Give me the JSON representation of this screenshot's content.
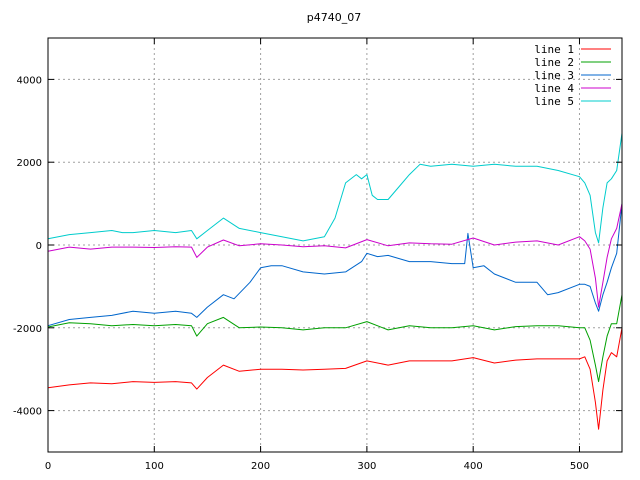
{
  "chart_data": {
    "type": "line",
    "title": "p4740_07",
    "xlabel": "",
    "ylabel": "",
    "xlim": [
      0,
      540
    ],
    "ylim": [
      -5000,
      5000
    ],
    "xticks": [
      0,
      100,
      200,
      300,
      400,
      500
    ],
    "yticks": [
      -4000,
      -2000,
      0,
      2000,
      4000
    ],
    "grid": true,
    "legend_position": "top-right",
    "series": [
      {
        "name": "line 1",
        "color": "#ff0000",
        "x": [
          0,
          20,
          40,
          60,
          80,
          100,
          120,
          135,
          140,
          150,
          165,
          180,
          200,
          220,
          240,
          260,
          280,
          300,
          320,
          340,
          360,
          380,
          400,
          420,
          440,
          460,
          480,
          500,
          505,
          510,
          515,
          518,
          522,
          526,
          530,
          535,
          540
        ],
        "y": [
          -3450,
          -3380,
          -3330,
          -3350,
          -3300,
          -3320,
          -3300,
          -3330,
          -3480,
          -3200,
          -2900,
          -3050,
          -3000,
          -3000,
          -3020,
          -3000,
          -2980,
          -2800,
          -2900,
          -2800,
          -2800,
          -2800,
          -2720,
          -2850,
          -2780,
          -2750,
          -2750,
          -2750,
          -2700,
          -3000,
          -3800,
          -4450,
          -3500,
          -2800,
          -2600,
          -2700,
          -2000
        ]
      },
      {
        "name": "line 2",
        "color": "#00a000",
        "x": [
          0,
          20,
          40,
          60,
          80,
          100,
          120,
          135,
          140,
          150,
          165,
          180,
          200,
          220,
          240,
          260,
          280,
          300,
          320,
          340,
          360,
          380,
          400,
          420,
          440,
          460,
          480,
          500,
          505,
          510,
          515,
          518,
          522,
          526,
          530,
          535,
          540
        ],
        "y": [
          -1980,
          -1880,
          -1900,
          -1950,
          -1920,
          -1950,
          -1920,
          -1950,
          -2200,
          -1900,
          -1750,
          -2000,
          -1980,
          -2000,
          -2050,
          -2000,
          -2000,
          -1850,
          -2050,
          -1950,
          -2000,
          -2000,
          -1950,
          -2050,
          -1970,
          -1950,
          -1950,
          -2000,
          -2000,
          -2300,
          -2900,
          -3300,
          -2700,
          -2200,
          -1900,
          -1900,
          -1200
        ]
      },
      {
        "name": "line 3",
        "color": "#0066cc",
        "x": [
          0,
          20,
          40,
          60,
          80,
          100,
          120,
          135,
          140,
          150,
          165,
          175,
          190,
          200,
          210,
          220,
          240,
          260,
          280,
          295,
          300,
          310,
          320,
          340,
          360,
          380,
          392,
          395,
          400,
          410,
          420,
          440,
          460,
          470,
          480,
          500,
          505,
          510,
          515,
          518,
          522,
          526,
          530,
          535,
          540
        ],
        "y": [
          -1950,
          -1800,
          -1750,
          -1700,
          -1600,
          -1650,
          -1600,
          -1650,
          -1750,
          -1500,
          -1200,
          -1300,
          -900,
          -550,
          -500,
          -500,
          -650,
          -700,
          -650,
          -400,
          -200,
          -280,
          -250,
          -400,
          -400,
          -450,
          -450,
          280,
          -550,
          -500,
          -700,
          -900,
          -900,
          -1200,
          -1150,
          -950,
          -950,
          -1000,
          -1400,
          -1600,
          -1200,
          -900,
          -550,
          -200,
          1000
        ]
      },
      {
        "name": "line 4",
        "color": "#cc00cc",
        "x": [
          0,
          20,
          40,
          60,
          80,
          100,
          120,
          135,
          140,
          150,
          165,
          180,
          200,
          220,
          240,
          260,
          280,
          300,
          320,
          340,
          360,
          380,
          400,
          420,
          440,
          460,
          480,
          500,
          505,
          510,
          515,
          518,
          522,
          526,
          530,
          535,
          540
        ],
        "y": [
          -150,
          -50,
          -100,
          -50,
          -50,
          -60,
          -40,
          -50,
          -300,
          -50,
          120,
          -20,
          30,
          0,
          -40,
          -20,
          -70,
          130,
          -20,
          50,
          30,
          20,
          170,
          0,
          70,
          100,
          0,
          200,
          100,
          -100,
          -800,
          -1500,
          -900,
          -300,
          150,
          400,
          1000
        ]
      },
      {
        "name": "line 5",
        "color": "#00cccc",
        "x": [
          0,
          20,
          40,
          60,
          70,
          80,
          100,
          120,
          135,
          140,
          150,
          165,
          180,
          200,
          220,
          240,
          260,
          270,
          280,
          290,
          295,
          300,
          305,
          310,
          320,
          330,
          340,
          350,
          360,
          380,
          400,
          420,
          440,
          460,
          480,
          500,
          505,
          510,
          515,
          518,
          522,
          526,
          530,
          535,
          540
        ],
        "y": [
          150,
          250,
          300,
          350,
          300,
          300,
          350,
          300,
          350,
          150,
          350,
          650,
          400,
          300,
          200,
          100,
          200,
          650,
          1500,
          1700,
          1600,
          1700,
          1200,
          1100,
          1100,
          1400,
          1700,
          1950,
          1900,
          1950,
          1900,
          1950,
          1900,
          1900,
          1800,
          1650,
          1500,
          1200,
          300,
          50,
          900,
          1500,
          1600,
          1800,
          2700
        ]
      }
    ]
  }
}
